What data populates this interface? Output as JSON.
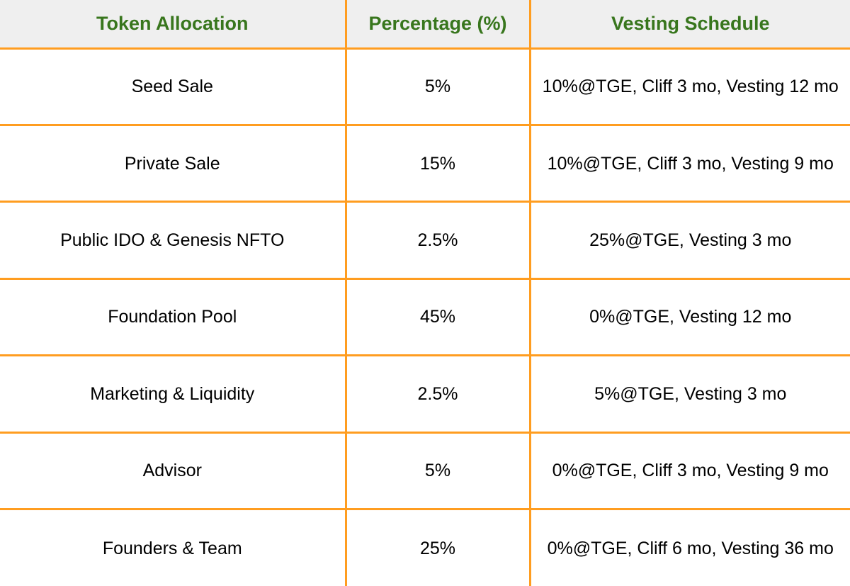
{
  "colors": {
    "border_orange": "#ff9d20",
    "header_text_green": "#38761d",
    "header_bg_gray": "#efefef",
    "body_text": "#000000",
    "body_bg": "#ffffff"
  },
  "chart_data": {
    "type": "table",
    "title": "Token Allocation / Vesting Schedule table",
    "columns": [
      "Token Allocation",
      "Percentage (%)",
      "Vesting Schedule"
    ],
    "rows": [
      [
        "Seed Sale",
        "5%",
        "10%@TGE, Cliff 3 mo, Vesting 12 mo"
      ],
      [
        "Private Sale",
        "15%",
        "10%@TGE, Cliff 3 mo, Vesting 9 mo"
      ],
      [
        "Public IDO & Genesis NFTO",
        "2.5%",
        "25%@TGE, Vesting 3 mo"
      ],
      [
        "Foundation Pool",
        "45%",
        "0%@TGE, Vesting 12 mo"
      ],
      [
        "Marketing & Liquidity",
        "2.5%",
        "5%@TGE, Vesting 3 mo"
      ],
      [
        "Advisor",
        "5%",
        "0%@TGE, Cliff 3 mo, Vesting 9 mo"
      ],
      [
        "Founders & Team",
        "25%",
        "0%@TGE, Cliff 6 mo, Vesting 36 mo"
      ]
    ]
  },
  "table": {
    "headers": {
      "allocation": "Token Allocation",
      "percentage": "Percentage (%)",
      "vesting": "Vesting Schedule"
    },
    "rows": [
      {
        "allocation": "Seed Sale",
        "percentage": "5%",
        "vesting": "10%@TGE, Cliff 3 mo, Vesting 12 mo"
      },
      {
        "allocation": "Private Sale",
        "percentage": "15%",
        "vesting": "10%@TGE, Cliff 3 mo, Vesting 9 mo"
      },
      {
        "allocation": "Public IDO & Genesis NFTO",
        "percentage": "2.5%",
        "vesting": "25%@TGE, Vesting 3 mo"
      },
      {
        "allocation": "Foundation Pool",
        "percentage": "45%",
        "vesting": "0%@TGE, Vesting 12 mo"
      },
      {
        "allocation": "Marketing & Liquidity",
        "percentage": "2.5%",
        "vesting": "5%@TGE, Vesting 3 mo"
      },
      {
        "allocation": "Advisor",
        "percentage": "5%",
        "vesting": "0%@TGE, Cliff 3 mo, Vesting 9 mo"
      },
      {
        "allocation": "Founders & Team",
        "percentage": "25%",
        "vesting": "0%@TGE, Cliff 6 mo, Vesting 36 mo"
      }
    ]
  }
}
